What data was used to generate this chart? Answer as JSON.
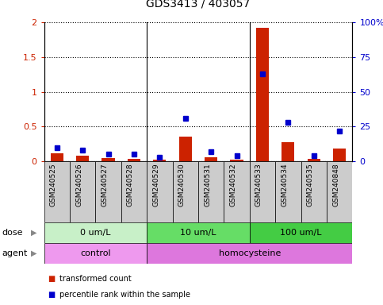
{
  "title": "GDS3413 / 403057",
  "samples": [
    "GSM240525",
    "GSM240526",
    "GSM240527",
    "GSM240528",
    "GSM240529",
    "GSM240530",
    "GSM240531",
    "GSM240532",
    "GSM240533",
    "GSM240534",
    "GSM240535",
    "GSM240848"
  ],
  "transformed_count": [
    0.12,
    0.08,
    0.05,
    0.04,
    0.03,
    0.36,
    0.06,
    0.03,
    1.92,
    0.28,
    0.04,
    0.18
  ],
  "percentile_rank": [
    10,
    8,
    5,
    5,
    3,
    31,
    7,
    4,
    63,
    28,
    4,
    22
  ],
  "ylim_left": [
    0,
    2
  ],
  "ylim_right": [
    0,
    100
  ],
  "yticks_left": [
    0,
    0.5,
    1.0,
    1.5,
    2.0
  ],
  "yticks_right": [
    0,
    25,
    50,
    75,
    100
  ],
  "ytick_labels_left": [
    "0",
    "0.5",
    "1",
    "1.5",
    "2"
  ],
  "ytick_labels_right": [
    "0",
    "25",
    "50",
    "75",
    "100%"
  ],
  "dose_groups": [
    {
      "label": "0 um/L",
      "start": 0,
      "end": 4,
      "color": "#c8f0c8"
    },
    {
      "label": "10 um/L",
      "start": 4,
      "end": 8,
      "color": "#66dd66"
    },
    {
      "label": "100 um/L",
      "start": 8,
      "end": 12,
      "color": "#44cc44"
    }
  ],
  "agent_groups": [
    {
      "label": "control",
      "start": 0,
      "end": 4,
      "color": "#ee99ee"
    },
    {
      "label": "homocysteine",
      "start": 4,
      "end": 12,
      "color": "#dd77dd"
    }
  ],
  "bar_color": "#cc2200",
  "dot_color": "#0000cc",
  "left_axis_color": "#cc2200",
  "right_axis_color": "#0000cc",
  "dose_label": "dose",
  "agent_label": "agent",
  "legend_tc": "transformed count",
  "legend_pr": "percentile rank within the sample",
  "bg_color": "#cccccc"
}
